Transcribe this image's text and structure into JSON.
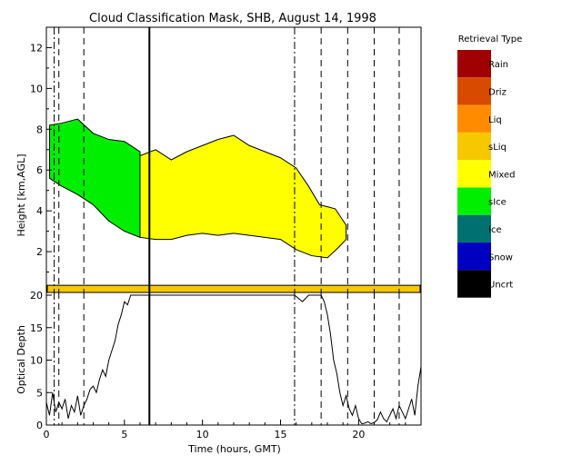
{
  "chart_data": [
    {
      "type": "area",
      "title": "Cloud Classification Mask, SHB, August 14, 1998",
      "xlabel": "Time (hours, GMT)",
      "ylabel": "Height [km,AGL]",
      "xlim": [
        0,
        24
      ],
      "ylim": [
        0,
        13
      ],
      "xticks": [
        "0",
        "5",
        "10",
        "15",
        "20"
      ],
      "yticks": [
        "2",
        "4",
        "6",
        "8",
        "10",
        "12"
      ],
      "legend": {
        "title": "Retrieval Type",
        "placement": "right",
        "items": [
          {
            "label": "Rain",
            "color": "#a00000"
          },
          {
            "label": "Driz",
            "color": "#d84a00"
          },
          {
            "label": "Liq",
            "color": "#ff8c00"
          },
          {
            "label": "sLiq",
            "color": "#f5c800"
          },
          {
            "label": "Mixed",
            "color": "#ffff00"
          },
          {
            "label": "sIce",
            "color": "#00ee00"
          },
          {
            "label": "Ice",
            "color": "#007070"
          },
          {
            "label": "Snow",
            "color": "#0000c0"
          },
          {
            "label": "Uncrt",
            "color": "#000000"
          }
        ]
      },
      "layers": [
        {
          "type": "sIce",
          "x_range": [
            0.2,
            6.0
          ],
          "top": [
            [
              0.2,
              8.2
            ],
            [
              1.0,
              8.3
            ],
            [
              2.0,
              8.5
            ],
            [
              3.0,
              7.8
            ],
            [
              4.0,
              7.5
            ],
            [
              5.0,
              7.4
            ],
            [
              6.0,
              6.9
            ]
          ],
          "base": [
            [
              0.2,
              5.6
            ],
            [
              1.0,
              5.2
            ],
            [
              2.0,
              4.8
            ],
            [
              3.0,
              4.3
            ],
            [
              4.0,
              3.5
            ],
            [
              5.0,
              3.0
            ],
            [
              6.0,
              2.7
            ]
          ]
        },
        {
          "type": "Mixed",
          "x_range": [
            6.0,
            19.2
          ],
          "top": [
            [
              6.0,
              6.7
            ],
            [
              7.0,
              7.0
            ],
            [
              8.0,
              6.5
            ],
            [
              9.0,
              6.9
            ],
            [
              10.0,
              7.2
            ],
            [
              11.0,
              7.5
            ],
            [
              12.0,
              7.7
            ],
            [
              13.0,
              7.2
            ],
            [
              14.0,
              6.9
            ],
            [
              15.0,
              6.6
            ],
            [
              16.0,
              6.1
            ],
            [
              16.8,
              5.2
            ],
            [
              17.5,
              4.3
            ],
            [
              18.5,
              4.1
            ],
            [
              19.2,
              3.3
            ]
          ],
          "base": [
            [
              6.0,
              2.7
            ],
            [
              7.0,
              2.6
            ],
            [
              8.0,
              2.6
            ],
            [
              9.0,
              2.8
            ],
            [
              10.0,
              2.9
            ],
            [
              11.0,
              2.8
            ],
            [
              12.0,
              2.9
            ],
            [
              13.0,
              2.8
            ],
            [
              14.0,
              2.7
            ],
            [
              15.0,
              2.6
            ],
            [
              16.0,
              2.1
            ],
            [
              17.0,
              1.8
            ],
            [
              18.0,
              1.7
            ],
            [
              18.7,
              2.2
            ],
            [
              19.2,
              2.6
            ]
          ]
        }
      ],
      "surface_band": {
        "type": "sLiq",
        "height_range": [
          0.0,
          0.35
        ]
      },
      "vertical_lines": {
        "dashed": [
          0.8,
          2.4,
          17.6,
          19.3,
          21.0,
          22.6
        ],
        "dash_dot": [
          0.5,
          15.9
        ],
        "solid": [
          6.6
        ]
      }
    },
    {
      "type": "line",
      "xlabel": "Time (hours, GMT)",
      "ylabel": "Optical Depth",
      "xlim": [
        0,
        24
      ],
      "ylim": [
        0,
        20
      ],
      "xticks": [
        "0",
        "5",
        "10",
        "15",
        "20"
      ],
      "yticks": [
        "0",
        "5",
        "10",
        "15",
        "20"
      ],
      "x": [
        0.0,
        0.2,
        0.4,
        0.6,
        0.8,
        1.0,
        1.2,
        1.4,
        1.6,
        1.8,
        2.0,
        2.2,
        2.4,
        2.6,
        2.8,
        3.0,
        3.2,
        3.4,
        3.6,
        3.8,
        4.0,
        4.2,
        4.4,
        4.6,
        4.8,
        5.0,
        5.2,
        5.4,
        5.6,
        5.8,
        6.0,
        6.3,
        6.6,
        15.9,
        16.4,
        16.8,
        17.2,
        17.6,
        17.8,
        18.0,
        18.2,
        18.4,
        18.6,
        18.8,
        19.0,
        19.2,
        19.4,
        19.6,
        19.8,
        20.0,
        20.2,
        20.4,
        20.6,
        20.8,
        21.0,
        21.2,
        21.4,
        21.6,
        21.8,
        22.0,
        22.2,
        22.4,
        22.6,
        22.8,
        23.0,
        23.2,
        23.4,
        23.6,
        23.8,
        24.0
      ],
      "y": [
        3.5,
        1.5,
        5.0,
        2.0,
        3.5,
        2.5,
        4.0,
        1.0,
        3.0,
        2.0,
        4.5,
        1.5,
        3.0,
        4.0,
        5.5,
        6.0,
        5.0,
        7.0,
        8.5,
        7.5,
        10.0,
        11.5,
        13.0,
        15.5,
        17.0,
        19.0,
        18.5,
        20.0,
        20.0,
        20.0,
        20.0,
        20.0,
        20.0,
        20.0,
        19.0,
        20.0,
        20.0,
        20.0,
        19.0,
        17.0,
        14.0,
        10.0,
        8.0,
        5.0,
        3.0,
        4.5,
        2.5,
        1.5,
        3.0,
        1.0,
        0.2,
        0.3,
        0.5,
        0.2,
        0.4,
        0.8,
        2.0,
        1.0,
        0.5,
        1.5,
        2.5,
        1.0,
        3.0,
        2.0,
        1.0,
        2.5,
        4.0,
        1.5,
        6.0,
        9.0
      ]
    }
  ]
}
